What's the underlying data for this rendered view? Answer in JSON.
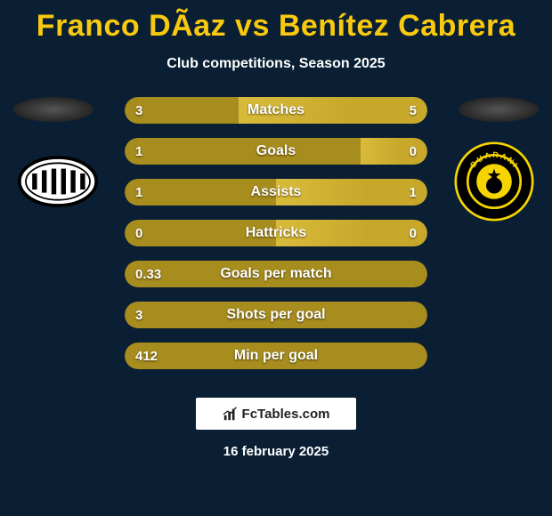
{
  "title": "Franco DÃ­az vs Benítez Cabrera",
  "subtitle": "Club competitions, Season 2025",
  "footer_logo_text": "FcTables.com",
  "footer_date": "16 february 2025",
  "colors": {
    "bar_left": "#a78c1e",
    "bar_right": "#c8a82b",
    "bar_accent": "#d9bb3a",
    "title_color": "#f8c90e",
    "text_color": "#ffffff",
    "background": "#0a1f33"
  },
  "rows": [
    {
      "label": "Matches",
      "left_val": "3",
      "right_val": "5",
      "left_pct": 37.5,
      "right_pct": 62.5
    },
    {
      "label": "Goals",
      "left_val": "1",
      "right_val": "0",
      "left_pct": 78,
      "right_pct": 22
    },
    {
      "label": "Assists",
      "left_val": "1",
      "right_val": "1",
      "left_pct": 50,
      "right_pct": 50
    },
    {
      "label": "Hattricks",
      "left_val": "0",
      "right_val": "0",
      "left_pct": 50,
      "right_pct": 50
    },
    {
      "label": "Goals per match",
      "left_val": "0.33",
      "right_val": "",
      "left_pct": 100,
      "right_pct": 0
    },
    {
      "label": "Shots per goal",
      "left_val": "3",
      "right_val": "",
      "left_pct": 100,
      "right_pct": 0
    },
    {
      "label": "Min per goal",
      "left_val": "412",
      "right_val": "",
      "left_pct": 100,
      "right_pct": 0
    }
  ],
  "badge_left": {
    "name": "Club Libertad",
    "shape": "ellipse-striped",
    "bg": "#ffffff",
    "stripes": "#000000",
    "border": "#000000"
  },
  "badge_right": {
    "name": "Guaraní",
    "shape": "circle",
    "bg": "#000000",
    "ring": "#f5d400",
    "text": "GUARANI"
  }
}
